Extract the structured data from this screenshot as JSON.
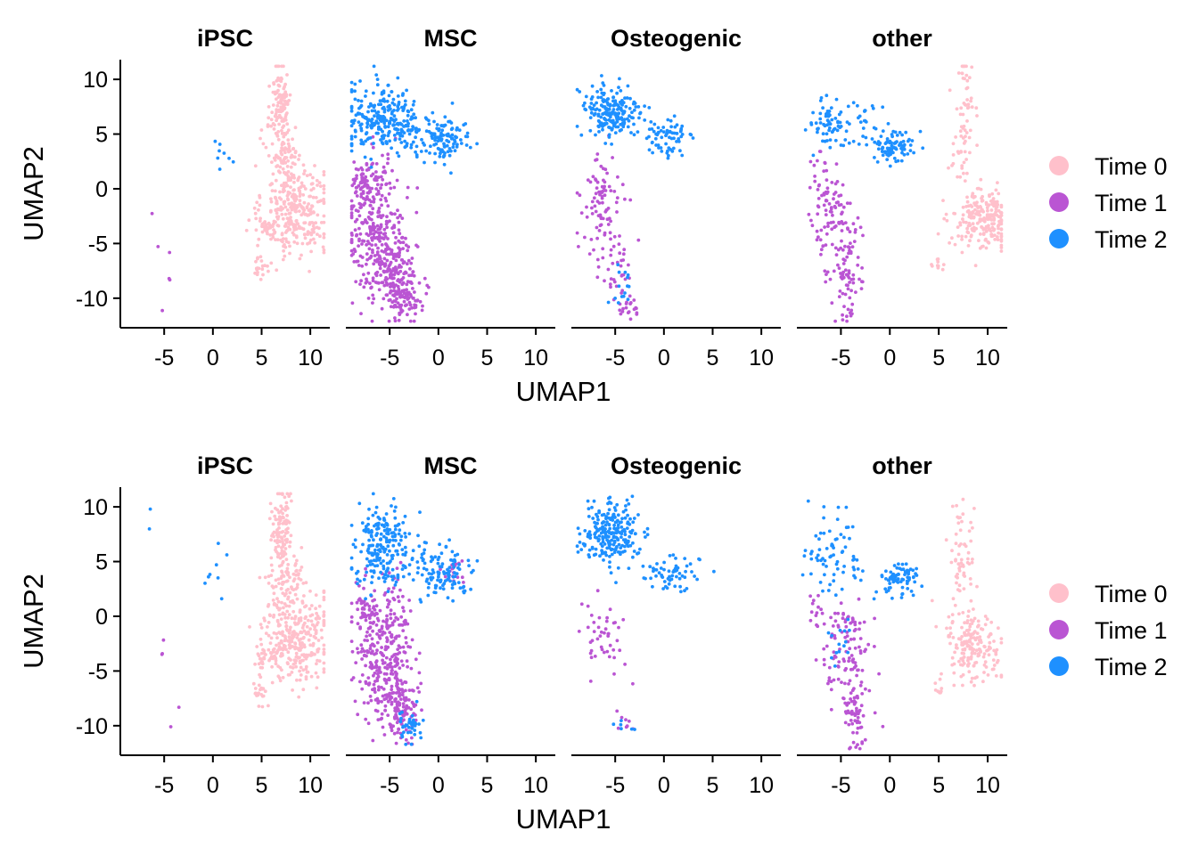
{
  "colors": {
    "Time 0": "#FFC0CB",
    "Time 1": "#BA55D3",
    "Time 2": "#1E90FF"
  },
  "legend": {
    "items": [
      "Time 0",
      "Time 1",
      "Time 2"
    ]
  },
  "chart_data": [
    {
      "type": "scatter",
      "panels": [
        "iPSC",
        "MSC",
        "Osteogenic",
        "other"
      ],
      "xlabel": "UMAP1",
      "ylabel": "UMAP2",
      "xlim": [
        -9.5,
        12
      ],
      "ylim": [
        -12.7,
        11.8
      ],
      "xticks": [
        -5,
        0,
        5,
        10
      ],
      "yticks": [
        10,
        5,
        0,
        -5,
        -10
      ],
      "series": [
        {
          "name": "Time 0",
          "clusters": [
            {
              "panel": "iPSC",
              "cx": 8.5,
              "cy": -2,
              "sx": 1.7,
              "sy": 2.1,
              "n": 300
            },
            {
              "panel": "iPSC",
              "cx": 7,
              "cy": 8,
              "sx": 0.5,
              "sy": 1.8,
              "n": 110
            },
            {
              "panel": "iPSC",
              "cx": 7.3,
              "cy": 3,
              "sx": 0.9,
              "sy": 1.5,
              "n": 90
            },
            {
              "panel": "iPSC",
              "cx": 4.8,
              "cy": -7,
              "sx": 0.3,
              "sy": 0.6,
              "n": 20
            },
            {
              "panel": "iPSC",
              "cx": 5.5,
              "cy": -3.8,
              "sx": 0.7,
              "sy": 0.5,
              "n": 30
            },
            {
              "panel": "other",
              "cx": 9.5,
              "cy": -2.8,
              "sx": 1.5,
              "sy": 1.3,
              "n": 220
            },
            {
              "panel": "other",
              "cx": 7.5,
              "cy": 6,
              "sx": 0.6,
              "sy": 3.2,
              "n": 70
            },
            {
              "panel": "other",
              "cx": 5,
              "cy": -7,
              "sx": 0.3,
              "sy": 0.7,
              "n": 10
            }
          ]
        },
        {
          "name": "Time 1",
          "clusters": [
            {
              "panel": "iPSC",
              "cx": -5,
              "cy": -6,
              "sx": 0.8,
              "sy": 2.5,
              "n": 6
            },
            {
              "panel": "MSC",
              "cx": -6.5,
              "cy": -3,
              "sx": 1.5,
              "sy": 3,
              "n": 300
            },
            {
              "panel": "MSC",
              "cx": -4.5,
              "cy": -8,
              "sx": 1.2,
              "sy": 1.5,
              "n": 150
            },
            {
              "panel": "MSC",
              "cx": -3.3,
              "cy": -10.3,
              "sx": 0.8,
              "sy": 0.8,
              "n": 70
            },
            {
              "panel": "MSC",
              "cx": -7.5,
              "cy": 0.5,
              "sx": 0.6,
              "sy": 0.8,
              "n": 40
            },
            {
              "panel": "Osteogenic",
              "cx": -6.5,
              "cy": -2,
              "sx": 1,
              "sy": 2.5,
              "n": 90
            },
            {
              "panel": "Osteogenic",
              "cx": -4.5,
              "cy": -7.5,
              "sx": 0.6,
              "sy": 2,
              "n": 35
            },
            {
              "panel": "Osteogenic",
              "cx": -3.5,
              "cy": -11,
              "sx": 0.6,
              "sy": 0.5,
              "n": 15
            },
            {
              "panel": "other",
              "cx": -5.5,
              "cy": -3,
              "sx": 1.2,
              "sy": 2.5,
              "n": 100
            },
            {
              "panel": "other",
              "cx": -4.3,
              "cy": -8.5,
              "sx": 0.7,
              "sy": 1.8,
              "n": 60
            },
            {
              "panel": "other",
              "cx": -7.5,
              "cy": 1,
              "sx": 0.5,
              "sy": 1,
              "n": 15
            }
          ]
        },
        {
          "name": "Time 2",
          "clusters": [
            {
              "panel": "iPSC",
              "cx": 1,
              "cy": 3,
              "sx": 1,
              "sy": 0.8,
              "n": 8
            },
            {
              "panel": "MSC",
              "cx": -6,
              "cy": 6.5,
              "sx": 1.8,
              "sy": 1.5,
              "n": 220
            },
            {
              "panel": "MSC",
              "cx": 0.5,
              "cy": 4.5,
              "sx": 1.4,
              "sy": 1,
              "n": 110
            },
            {
              "panel": "MSC",
              "cx": -3,
              "cy": 5.5,
              "sx": 1,
              "sy": 1,
              "n": 50
            },
            {
              "panel": "Osteogenic",
              "cx": -5.5,
              "cy": 7,
              "sx": 1.5,
              "sy": 1.3,
              "n": 200
            },
            {
              "panel": "Osteogenic",
              "cx": 0.5,
              "cy": 4.5,
              "sx": 1.4,
              "sy": 1,
              "n": 70
            },
            {
              "panel": "Osteogenic",
              "cx": -4.5,
              "cy": -9,
              "sx": 0.7,
              "sy": 1.5,
              "n": 15
            },
            {
              "panel": "other",
              "cx": -6.5,
              "cy": 6,
              "sx": 1,
              "sy": 1.2,
              "n": 60
            },
            {
              "panel": "other",
              "cx": 0.5,
              "cy": 4,
              "sx": 1.1,
              "sy": 0.8,
              "n": 90
            },
            {
              "panel": "other",
              "cx": -3,
              "cy": 6.5,
              "sx": 1,
              "sy": 1,
              "n": 25
            }
          ]
        }
      ]
    },
    {
      "type": "scatter",
      "panels": [
        "iPSC",
        "MSC",
        "Osteogenic",
        "other"
      ],
      "xlabel": "UMAP1",
      "ylabel": "UMAP2",
      "xlim": [
        -9.5,
        12
      ],
      "ylim": [
        -12.7,
        11.8
      ],
      "xticks": [
        -5,
        0,
        5,
        10
      ],
      "yticks": [
        10,
        5,
        0,
        -5,
        -10
      ],
      "series": [
        {
          "name": "Time 0",
          "clusters": [
            {
              "panel": "iPSC",
              "cx": 8.5,
              "cy": -2,
              "sx": 1.7,
              "sy": 2.1,
              "n": 300
            },
            {
              "panel": "iPSC",
              "cx": 7,
              "cy": 8,
              "sx": 0.5,
              "sy": 1.8,
              "n": 110
            },
            {
              "panel": "iPSC",
              "cx": 7.3,
              "cy": 3,
              "sx": 0.9,
              "sy": 1.5,
              "n": 90
            },
            {
              "panel": "iPSC",
              "cx": 4.8,
              "cy": -7,
              "sx": 0.3,
              "sy": 0.6,
              "n": 20
            },
            {
              "panel": "iPSC",
              "cx": 5.5,
              "cy": -3.8,
              "sx": 0.7,
              "sy": 0.5,
              "n": 30
            },
            {
              "panel": "other",
              "cx": 8.5,
              "cy": -2.5,
              "sx": 1.4,
              "sy": 1.6,
              "n": 180
            },
            {
              "panel": "other",
              "cx": 7.5,
              "cy": 5,
              "sx": 0.6,
              "sy": 3,
              "n": 60
            },
            {
              "panel": "other",
              "cx": 5,
              "cy": -7,
              "sx": 0.3,
              "sy": 0.5,
              "n": 8
            }
          ]
        },
        {
          "name": "Time 1",
          "clusters": [
            {
              "panel": "iPSC",
              "cx": -4.5,
              "cy": -7,
              "sx": 0.8,
              "sy": 2.5,
              "n": 5
            },
            {
              "panel": "MSC",
              "cx": -5.5,
              "cy": -3,
              "sx": 1.5,
              "sy": 3,
              "n": 300
            },
            {
              "panel": "MSC",
              "cx": -4,
              "cy": -8,
              "sx": 1,
              "sy": 1.5,
              "n": 130
            },
            {
              "panel": "MSC",
              "cx": -7.5,
              "cy": 0.5,
              "sx": 0.6,
              "sy": 0.8,
              "n": 40
            },
            {
              "panel": "MSC",
              "cx": 1.5,
              "cy": 4,
              "sx": 0.8,
              "sy": 0.6,
              "n": 20
            },
            {
              "panel": "Osteogenic",
              "cx": -6,
              "cy": -2,
              "sx": 1.2,
              "sy": 2,
              "n": 45
            },
            {
              "panel": "Osteogenic",
              "cx": -4,
              "cy": -9.5,
              "sx": 0.6,
              "sy": 0.6,
              "n": 8
            },
            {
              "panel": "other",
              "cx": -4.5,
              "cy": -3.5,
              "sx": 1.2,
              "sy": 2.5,
              "n": 110
            },
            {
              "panel": "other",
              "cx": -3.5,
              "cy": -9,
              "sx": 0.7,
              "sy": 1.5,
              "n": 60
            },
            {
              "panel": "other",
              "cx": -7.5,
              "cy": 0.5,
              "sx": 0.5,
              "sy": 1,
              "n": 12
            }
          ]
        },
        {
          "name": "Time 2",
          "clusters": [
            {
              "panel": "iPSC",
              "cx": 0.5,
              "cy": 4.5,
              "sx": 1.2,
              "sy": 1.2,
              "n": 8
            },
            {
              "panel": "iPSC",
              "cx": -7,
              "cy": 8.5,
              "sx": 0.8,
              "sy": 0.8,
              "n": 2
            },
            {
              "panel": "MSC",
              "cx": -5.5,
              "cy": 6.5,
              "sx": 1.6,
              "sy": 1.8,
              "n": 220
            },
            {
              "panel": "MSC",
              "cx": 0.5,
              "cy": 4,
              "sx": 1.5,
              "sy": 1,
              "n": 110
            },
            {
              "panel": "MSC",
              "cx": -3,
              "cy": -10,
              "sx": 0.7,
              "sy": 0.8,
              "n": 40
            },
            {
              "panel": "Osteogenic",
              "cx": -5.5,
              "cy": 7.5,
              "sx": 1.5,
              "sy": 1.3,
              "n": 230
            },
            {
              "panel": "Osteogenic",
              "cx": 0.5,
              "cy": 4,
              "sx": 1.5,
              "sy": 0.9,
              "n": 60
            },
            {
              "panel": "Osteogenic",
              "cx": -4,
              "cy": -10,
              "sx": 0.6,
              "sy": 0.5,
              "n": 6
            },
            {
              "panel": "other",
              "cx": -5.5,
              "cy": 5.5,
              "sx": 1.5,
              "sy": 2,
              "n": 70
            },
            {
              "panel": "other",
              "cx": 1,
              "cy": 3.5,
              "sx": 1,
              "sy": 0.8,
              "n": 80
            },
            {
              "panel": "other",
              "cx": -5,
              "cy": -2,
              "sx": 0.7,
              "sy": 1.5,
              "n": 15
            }
          ]
        }
      ]
    }
  ]
}
